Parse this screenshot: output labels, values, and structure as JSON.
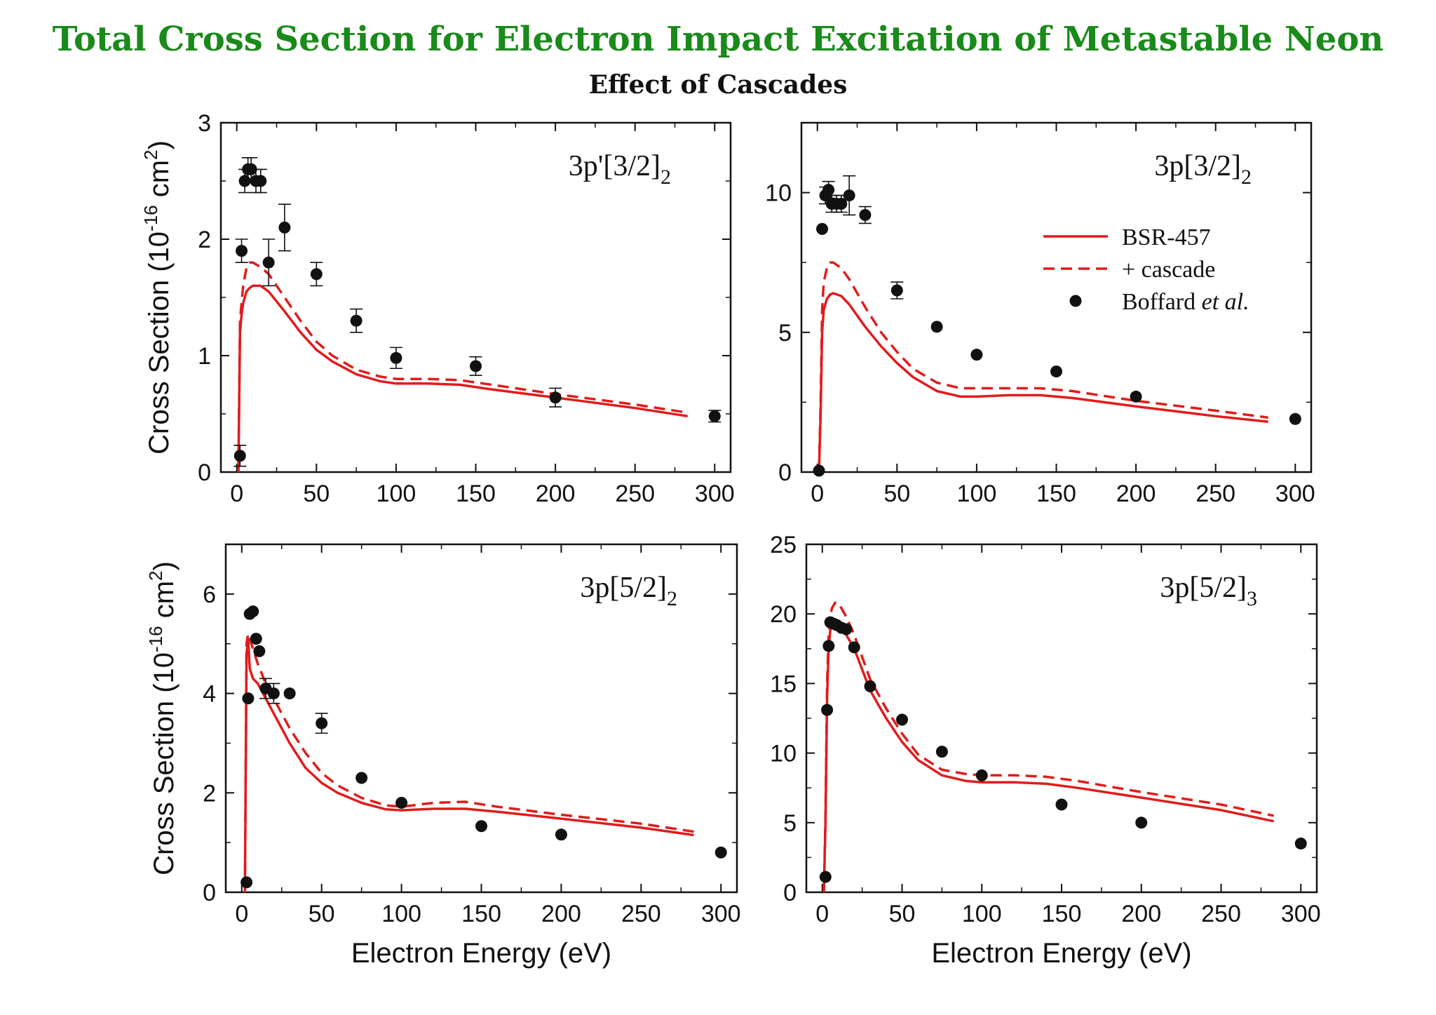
{
  "title": "Total Cross Section for Electron Impact Excitation of Metastable Neon",
  "subtitle": "Effect of Cascades",
  "colors": {
    "title": "#1a8a1a",
    "theory": "#e01c1c",
    "data": "#111111"
  },
  "chart_data": [
    {
      "type": "line",
      "panel": "top-left",
      "label": "3p'[3/2]",
      "label_sub": "2",
      "xlim": [
        -10,
        310
      ],
      "ylim": [
        0,
        3
      ],
      "xticks": [
        0,
        50,
        100,
        150,
        200,
        250,
        300
      ],
      "yticks": [
        0,
        1,
        2,
        3
      ],
      "xlabel": "",
      "ylabel": "Cross Section (10",
      "ylabel_sup": "-16",
      "ylabel_tail": " cm",
      "ylabel_sup2": "2",
      "ylabel_end": ")",
      "series": [
        {
          "name": "BSR-457",
          "style": "solid",
          "x": [
            1,
            2,
            3,
            4,
            6,
            8,
            10,
            15,
            20,
            30,
            40,
            50,
            60,
            75,
            90,
            100,
            120,
            140,
            160,
            200,
            250,
            283
          ],
          "y": [
            0,
            1.2,
            1.35,
            1.45,
            1.55,
            1.58,
            1.6,
            1.6,
            1.55,
            1.38,
            1.2,
            1.05,
            0.95,
            0.84,
            0.78,
            0.76,
            0.76,
            0.75,
            0.71,
            0.64,
            0.55,
            0.48
          ]
        },
        {
          "name": "+ cascade",
          "style": "dashed",
          "x": [
            1,
            2,
            3,
            4,
            6,
            8,
            10,
            15,
            20,
            30,
            40,
            50,
            60,
            75,
            90,
            100,
            120,
            140,
            160,
            200,
            250,
            283
          ],
          "y": [
            0,
            1.3,
            1.45,
            1.6,
            1.75,
            1.8,
            1.8,
            1.76,
            1.7,
            1.5,
            1.3,
            1.12,
            1.0,
            0.88,
            0.82,
            0.8,
            0.8,
            0.79,
            0.75,
            0.67,
            0.58,
            0.51
          ]
        },
        {
          "name": "Boffard et al.",
          "style": "points",
          "x": [
            2,
            3,
            5,
            7,
            9,
            12,
            15,
            20,
            30,
            50,
            75,
            100,
            150,
            200,
            300
          ],
          "y": [
            0.14,
            1.9,
            2.5,
            2.6,
            2.6,
            2.5,
            2.5,
            1.8,
            2.1,
            1.7,
            1.3,
            0.98,
            0.91,
            0.64,
            0.48
          ],
          "err": [
            0.09,
            0.1,
            0.1,
            0.1,
            0.1,
            0.1,
            0.1,
            0.2,
            0.2,
            0.1,
            0.1,
            0.09,
            0.08,
            0.08,
            0.05
          ]
        }
      ]
    },
    {
      "type": "line",
      "panel": "top-right",
      "label": "3p[3/2]",
      "label_sub": "2",
      "xlim": [
        -10,
        310
      ],
      "ylim": [
        0,
        12.5
      ],
      "xticks": [
        0,
        50,
        100,
        150,
        200,
        250,
        300
      ],
      "yticks": [
        0,
        5,
        10
      ],
      "xlabel": "",
      "ylabel": "",
      "legend": {
        "position": "top-right",
        "entries": [
          "BSR-457",
          "+ cascade",
          "Boffard ",
          "et al."
        ]
      },
      "series": [
        {
          "name": "BSR-457",
          "style": "solid",
          "x": [
            1,
            2,
            3,
            4,
            6,
            8,
            10,
            15,
            20,
            30,
            40,
            50,
            60,
            75,
            90,
            100,
            120,
            140,
            160,
            200,
            250,
            283
          ],
          "y": [
            0,
            2.0,
            5.0,
            5.8,
            6.2,
            6.35,
            6.4,
            6.3,
            6.0,
            5.2,
            4.5,
            3.9,
            3.4,
            2.9,
            2.7,
            2.7,
            2.75,
            2.75,
            2.65,
            2.35,
            2.0,
            1.8
          ]
        },
        {
          "name": "+ cascade",
          "style": "dashed",
          "x": [
            1,
            2,
            3,
            4,
            6,
            8,
            10,
            15,
            20,
            30,
            40,
            50,
            60,
            75,
            90,
            100,
            120,
            140,
            160,
            200,
            250,
            283
          ],
          "y": [
            0,
            2.4,
            5.8,
            6.8,
            7.3,
            7.5,
            7.5,
            7.3,
            6.9,
            5.9,
            5.0,
            4.3,
            3.7,
            3.2,
            3.0,
            3.0,
            3.0,
            3.0,
            2.9,
            2.55,
            2.2,
            1.95
          ]
        },
        {
          "name": "Boffard et al.",
          "style": "points",
          "x": [
            1,
            3,
            5,
            7,
            9,
            12,
            15,
            20,
            30,
            50,
            75,
            100,
            150,
            200,
            300
          ],
          "y": [
            0.05,
            8.7,
            9.9,
            10.1,
            9.6,
            9.6,
            9.6,
            9.9,
            9.2,
            6.5,
            5.2,
            4.2,
            3.6,
            2.7,
            1.9
          ],
          "err": [
            0.05,
            0.2,
            0.3,
            0.3,
            0.3,
            0.3,
            0.3,
            0.7,
            0.3,
            0.3,
            0.1,
            0.1,
            0.1,
            0.15,
            0.1
          ]
        }
      ]
    },
    {
      "type": "line",
      "panel": "bottom-left",
      "label": "3p[5/2]",
      "label_sub": "2",
      "xlim": [
        -10,
        310
      ],
      "ylim": [
        0,
        7
      ],
      "xticks": [
        0,
        50,
        100,
        150,
        200,
        250,
        300
      ],
      "yticks": [
        0,
        2,
        4,
        6
      ],
      "xlabel": "Electron Energy (eV)",
      "ylabel": "Cross Section (10",
      "ylabel_sup": "-16",
      "ylabel_tail": " cm",
      "ylabel_sup2": "2",
      "ylabel_end": ")",
      "series": [
        {
          "name": "BSR-457",
          "style": "solid",
          "x": [
            2,
            3,
            4,
            5,
            7,
            10,
            15,
            20,
            30,
            40,
            50,
            60,
            75,
            90,
            100,
            120,
            140,
            160,
            200,
            250,
            283
          ],
          "y": [
            0,
            4.8,
            5.1,
            4.5,
            4.3,
            4.2,
            3.9,
            3.6,
            3.0,
            2.5,
            2.2,
            2.0,
            1.8,
            1.67,
            1.65,
            1.68,
            1.68,
            1.62,
            1.48,
            1.3,
            1.15
          ]
        },
        {
          "name": "+ cascade",
          "style": "dashed",
          "x": [
            2,
            3,
            4,
            5,
            7,
            10,
            15,
            20,
            30,
            40,
            50,
            60,
            75,
            90,
            100,
            120,
            140,
            160,
            200,
            250,
            283
          ],
          "y": [
            0,
            5.0,
            5.2,
            5.1,
            4.9,
            4.6,
            4.2,
            3.9,
            3.3,
            2.8,
            2.4,
            2.15,
            1.9,
            1.75,
            1.72,
            1.8,
            1.82,
            1.72,
            1.56,
            1.38,
            1.22
          ]
        },
        {
          "name": "Boffard et al.",
          "style": "points",
          "x": [
            3,
            4,
            5,
            7,
            9,
            11,
            15,
            20,
            30,
            50,
            75,
            100,
            150,
            200,
            300
          ],
          "y": [
            0.2,
            3.9,
            5.6,
            5.65,
            5.1,
            4.85,
            4.1,
            4.0,
            4.0,
            3.4,
            2.3,
            1.8,
            1.33,
            1.16,
            0.8
          ],
          "err": [
            0.05,
            0.1,
            0.1,
            0.1,
            0.1,
            0.1,
            0.2,
            0.2,
            0.1,
            0.2,
            0.1,
            0.1,
            0.05,
            0.05,
            0.04
          ]
        }
      ]
    },
    {
      "type": "line",
      "panel": "bottom-right",
      "label": "3p[5/2]",
      "label_sub": "3",
      "xlim": [
        -10,
        310
      ],
      "ylim": [
        0,
        25
      ],
      "xticks": [
        0,
        50,
        100,
        150,
        200,
        250,
        300
      ],
      "yticks": [
        0,
        5,
        10,
        15,
        20,
        25
      ],
      "xlabel": "Electron Energy (eV)",
      "ylabel": "",
      "series": [
        {
          "name": "BSR-457",
          "style": "solid",
          "x": [
            1,
            2,
            3,
            4,
            5,
            6,
            8,
            10,
            15,
            20,
            30,
            40,
            50,
            60,
            75,
            90,
            100,
            120,
            140,
            160,
            200,
            250,
            283
          ],
          "y": [
            0,
            5.0,
            14.0,
            17.5,
            18.8,
            19.5,
            19.3,
            19.0,
            18.5,
            17.5,
            14.5,
            12.5,
            10.8,
            9.5,
            8.4,
            8.0,
            7.9,
            7.9,
            7.8,
            7.5,
            6.8,
            5.9,
            5.1
          ]
        },
        {
          "name": "+ cascade",
          "style": "dashed",
          "x": [
            1,
            2,
            3,
            4,
            5,
            6,
            8,
            10,
            15,
            20,
            30,
            40,
            50,
            60,
            75,
            90,
            100,
            120,
            140,
            160,
            200,
            250,
            283
          ],
          "y": [
            0,
            5.5,
            15.0,
            18.5,
            19.8,
            20.4,
            20.8,
            20.8,
            19.8,
            18.5,
            15.3,
            13.2,
            11.4,
            9.9,
            8.8,
            8.5,
            8.4,
            8.4,
            8.3,
            8.0,
            7.2,
            6.3,
            5.5
          ]
        },
        {
          "name": "Boffard et al.",
          "style": "points",
          "x": [
            2,
            3,
            4,
            5,
            7,
            9,
            12,
            15,
            20,
            30,
            50,
            75,
            100,
            150,
            200,
            300
          ],
          "y": [
            1.1,
            13.1,
            17.7,
            19.4,
            19.3,
            19.2,
            19.0,
            18.9,
            17.6,
            14.8,
            12.4,
            10.1,
            8.4,
            6.3,
            5.0,
            3.5
          ],
          "err": [
            0.1,
            0.3,
            0.3,
            0.3,
            0.3,
            0.3,
            0.3,
            0.3,
            0.3,
            0.3,
            0.2,
            0.2,
            0.2,
            0.1,
            0.1,
            0.1
          ]
        }
      ]
    }
  ]
}
